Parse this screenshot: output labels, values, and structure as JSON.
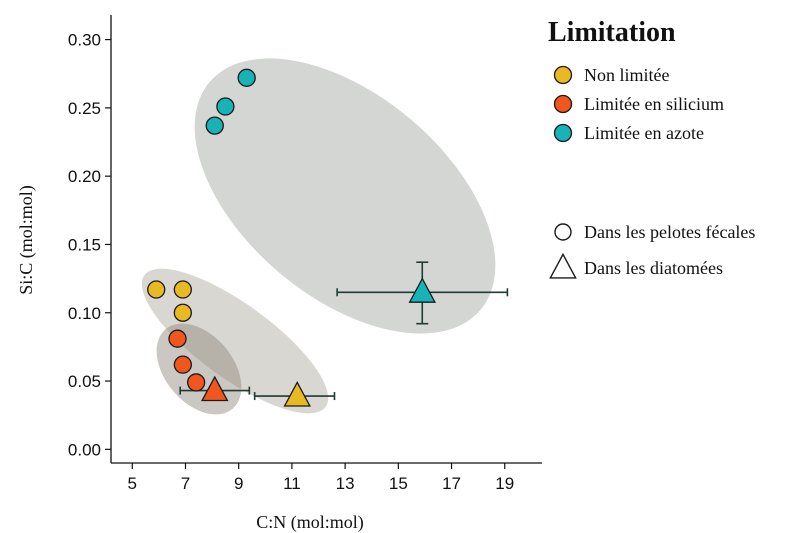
{
  "chart_data": {
    "type": "scatter",
    "xlabel": "C:N (mol:mol)",
    "ylabel": "Si:C (mol:mol)",
    "xlim": [
      4.2,
      20.4
    ],
    "ylim": [
      -0.01,
      0.318
    ],
    "xticks": [
      "5",
      "7",
      "9",
      "11",
      "13",
      "15",
      "17",
      "19"
    ],
    "yticks": [
      "0.00",
      "0.05",
      "0.10",
      "0.15",
      "0.20",
      "0.25",
      "0.30"
    ],
    "grid": false,
    "legend": {
      "title": "Limitation",
      "placement": "right",
      "color_entries": [
        {
          "label": "Non limitée",
          "color": "#E8B923"
        },
        {
          "label": "Limitée en silicium",
          "color": "#F0561D"
        },
        {
          "label": "Limitée en azote",
          "color": "#17B3B7"
        }
      ],
      "shape_entries": [
        {
          "label": "Dans les pelotes fécales",
          "shape": "circle"
        },
        {
          "label": "Dans les diatomées",
          "shape": "triangle"
        }
      ]
    },
    "series": [
      {
        "group": "Non limitée",
        "color": "#E8B923",
        "fecal_pellets": [
          [
            5.9,
            0.117
          ],
          [
            6.9,
            0.117
          ],
          [
            6.9,
            0.1
          ]
        ],
        "diatoms": {
          "x": 11.2,
          "y": 0.039,
          "x_err": [
            9.6,
            12.6
          ]
        }
      },
      {
        "group": "Limitée en silicium",
        "color": "#F0561D",
        "fecal_pellets": [
          [
            6.7,
            0.081
          ],
          [
            6.9,
            0.062
          ],
          [
            7.4,
            0.049
          ]
        ],
        "diatoms": {
          "x": 8.1,
          "y": 0.043,
          "x_err": [
            6.8,
            9.4
          ]
        }
      },
      {
        "group": "Limitée en azote",
        "color": "#17B3B7",
        "fecal_pellets": [
          [
            8.1,
            0.237
          ],
          [
            8.5,
            0.251
          ],
          [
            9.3,
            0.272
          ]
        ],
        "diatoms": {
          "x": 15.9,
          "y": 0.115,
          "x_err": [
            12.7,
            19.1
          ],
          "y_err": [
            0.092,
            0.137
          ]
        }
      }
    ],
    "ellipses": [
      {
        "group": "Non limitée",
        "color": "#9C9688",
        "opacity": 0.38
      },
      {
        "group": "Limitée en silicium",
        "color": "#8C8679",
        "opacity": 0.45
      },
      {
        "group": "Limitée en azote",
        "color": "#A9AEAA",
        "opacity": 0.5
      }
    ]
  }
}
